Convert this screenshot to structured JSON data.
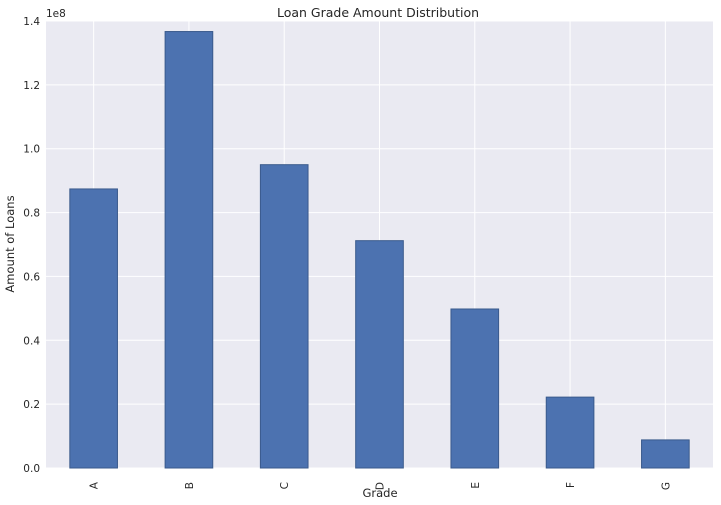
{
  "chart_data": {
    "type": "bar",
    "title": "Loan Grade Amount Distribution",
    "xlabel": "Grade",
    "ylabel": "Amount of Loans",
    "y_offset_label": "1e8",
    "categories": [
      "A",
      "B",
      "C",
      "D",
      "E",
      "F",
      "G"
    ],
    "values": [
      87400000,
      136700000,
      95000000,
      71200000,
      49800000,
      22200000,
      8800000
    ],
    "ylim": [
      0,
      140000000
    ],
    "yticks": [
      0,
      20000000,
      40000000,
      60000000,
      80000000,
      100000000,
      120000000,
      140000000
    ],
    "ytick_labels": [
      "0.0",
      "0.2",
      "0.4",
      "0.6",
      "0.8",
      "1.0",
      "1.2",
      "1.4"
    ],
    "grid": true,
    "legend": "none",
    "colors": {
      "bar": "#4c72b0",
      "bar_edge": "#3a5a8c",
      "plot_bg": "#eaeaf2",
      "grid": "#ffffff"
    }
  }
}
